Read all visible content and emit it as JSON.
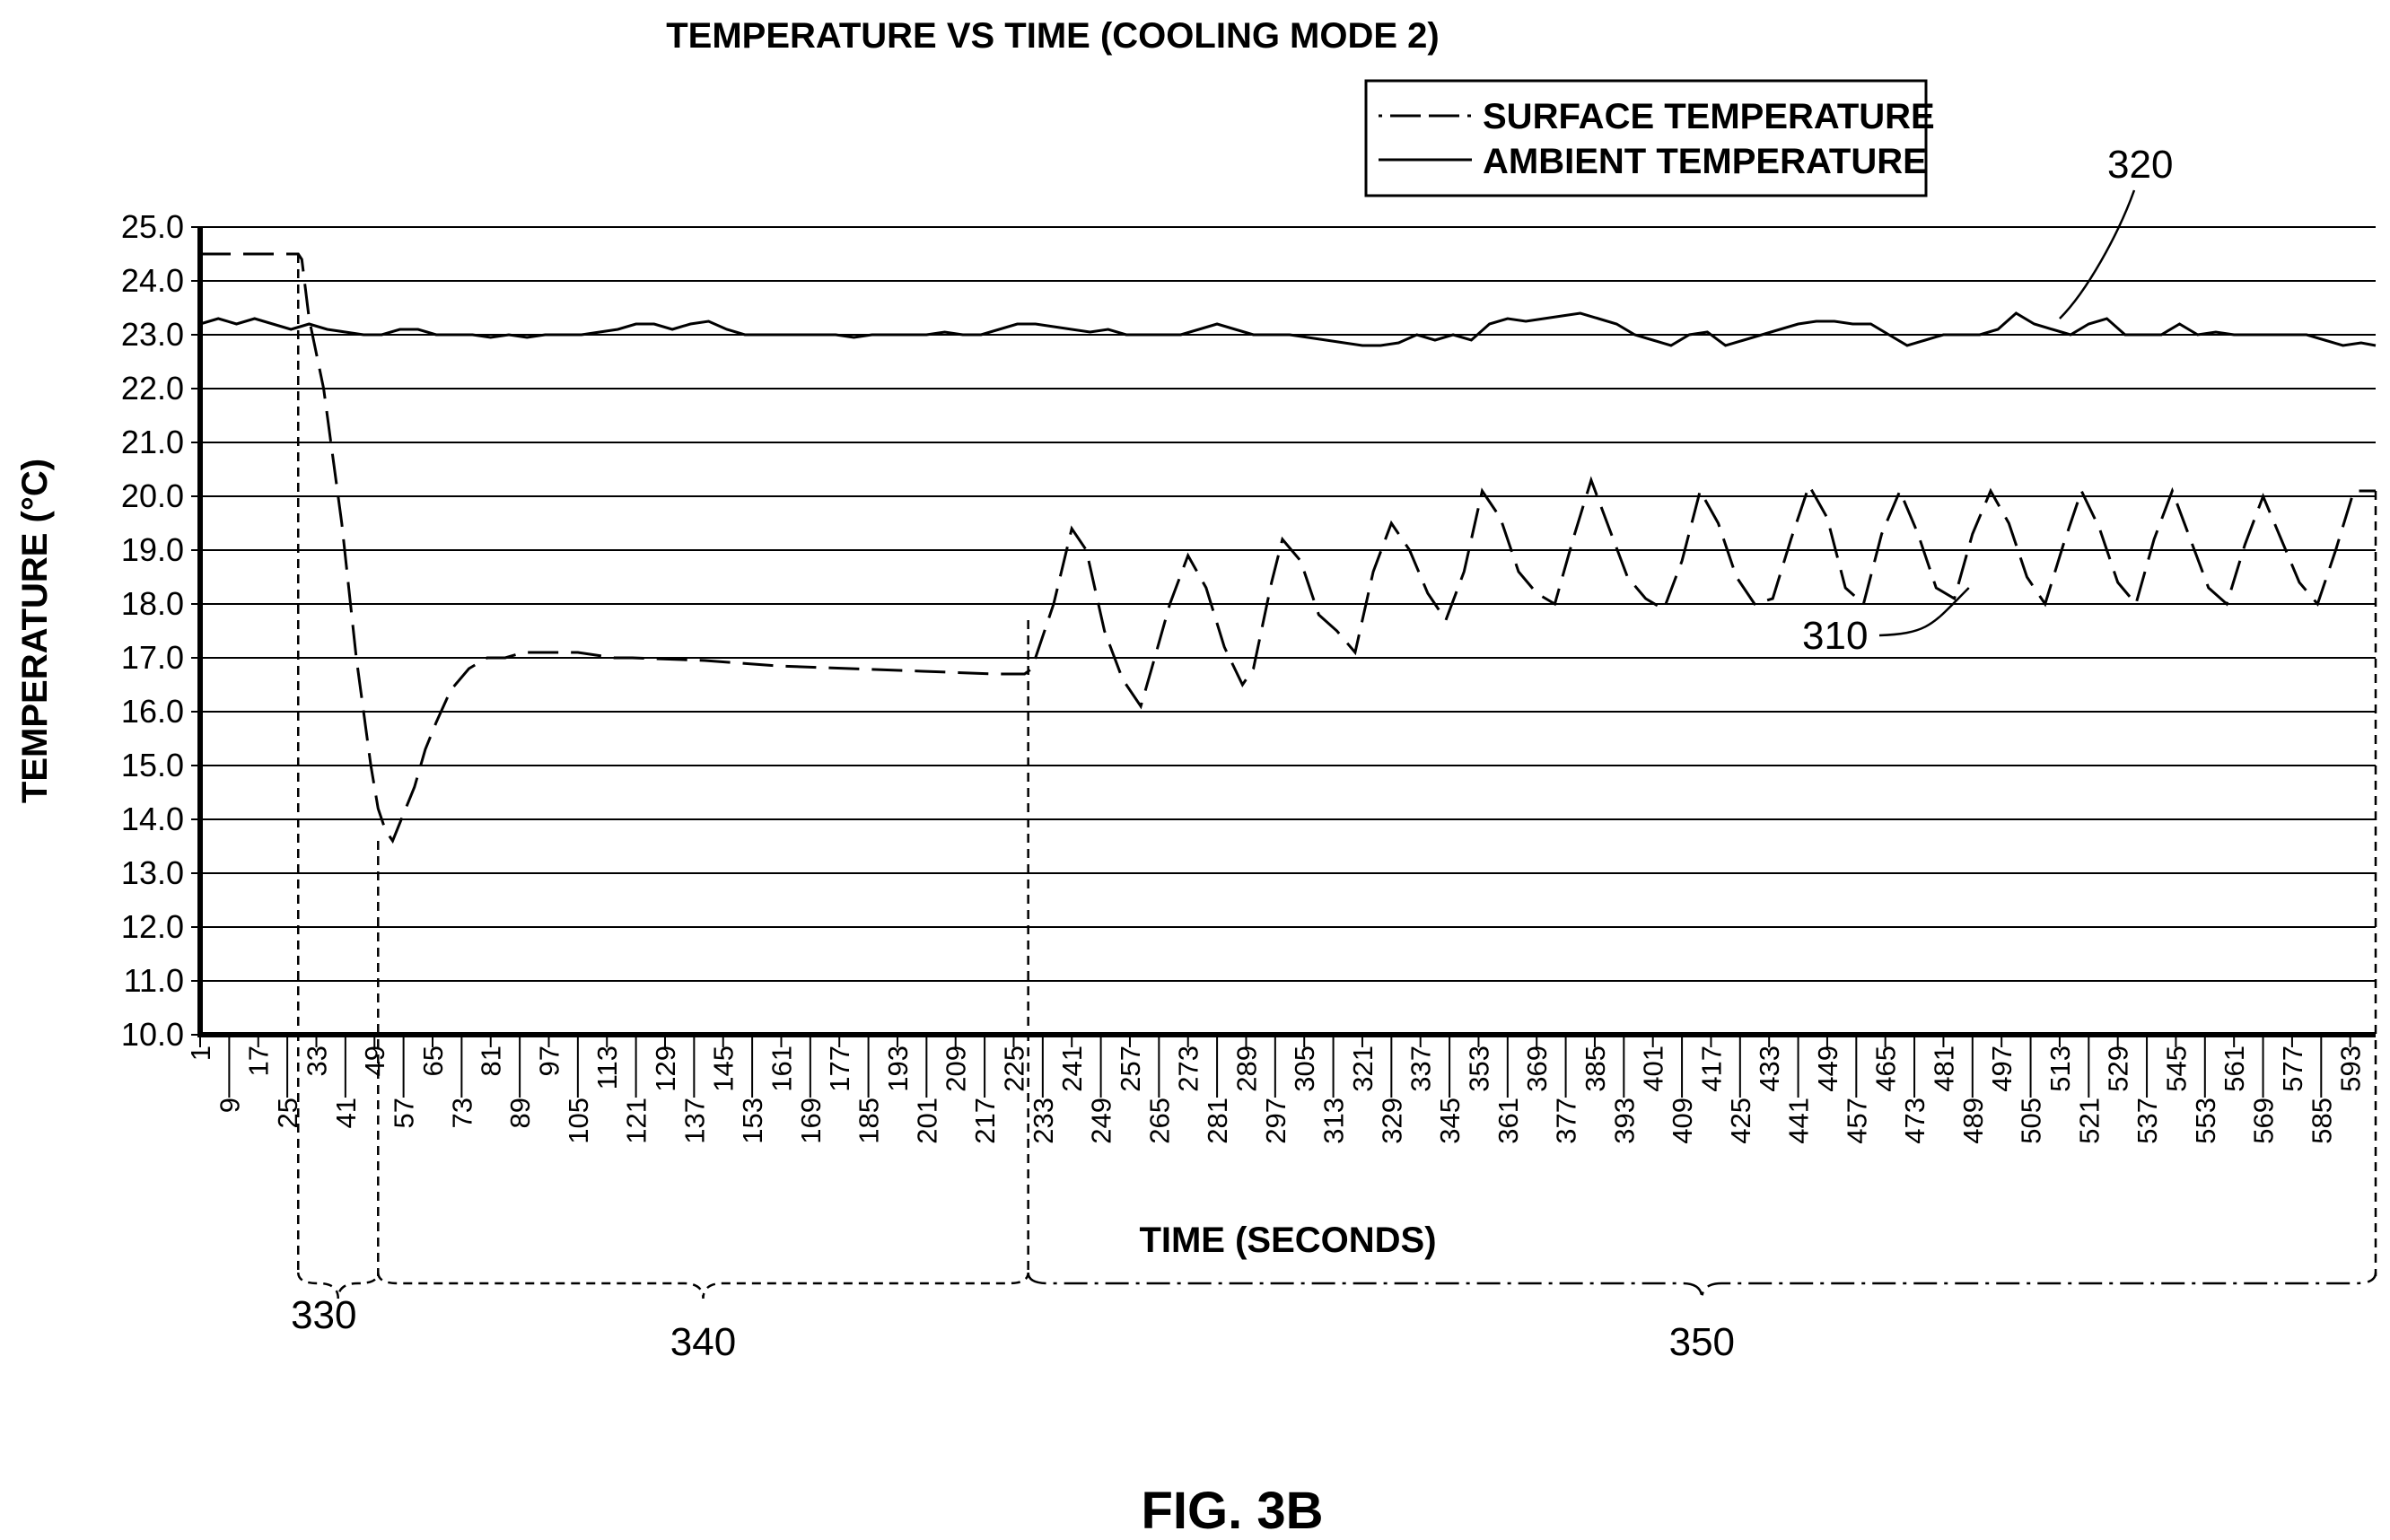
{
  "figure_label": "FIG. 3B",
  "chart_data": {
    "type": "line",
    "title": "TEMPERATURE VS TIME (COOLING MODE 2)",
    "xlabel": "TIME (SECONDS)",
    "ylabel": "TEMPERATURE (°C)",
    "ylim": [
      10.0,
      25.0
    ],
    "xlim": [
      1,
      600
    ],
    "yticks": [
      "10.0",
      "11.0",
      "12.0",
      "13.0",
      "14.0",
      "15.0",
      "16.0",
      "17.0",
      "18.0",
      "19.0",
      "20.0",
      "21.0",
      "22.0",
      "23.0",
      "24.0",
      "25.0"
    ],
    "xticks": [
      "1",
      "9",
      "17",
      "25",
      "33",
      "41",
      "49",
      "57",
      "65",
      "73",
      "81",
      "89",
      "97",
      "105",
      "113",
      "121",
      "129",
      "137",
      "145",
      "153",
      "161",
      "169",
      "177",
      "185",
      "193",
      "201",
      "209",
      "217",
      "225",
      "233",
      "241",
      "249",
      "257",
      "265",
      "273",
      "281",
      "289",
      "297",
      "305",
      "313",
      "321",
      "329",
      "337",
      "345",
      "353",
      "361",
      "369",
      "377",
      "385",
      "393",
      "401",
      "409",
      "417",
      "425",
      "433",
      "441",
      "449",
      "457",
      "465",
      "473",
      "481",
      "489",
      "497",
      "505",
      "513",
      "521",
      "529",
      "537",
      "545",
      "553",
      "561",
      "569",
      "577",
      "585",
      "593"
    ],
    "grid": "horizontal",
    "legend_placement": "top-right",
    "series": [
      {
        "name": "SURFACE TEMPERATURE",
        "style": "dashed",
        "x": [
          1,
          10,
          20,
          28,
          29,
          31,
          35,
          40,
          44,
          48,
          50,
          52,
          54,
          57,
          60,
          63,
          66,
          70,
          75,
          80,
          85,
          90,
          95,
          100,
          105,
          110,
          115,
          120,
          140,
          160,
          180,
          200,
          220,
          228,
          230,
          236,
          241,
          245,
          250,
          255,
          260,
          263,
          268,
          273,
          278,
          283,
          288,
          291,
          296,
          299,
          304,
          309,
          314,
          319,
          324,
          329,
          334,
          339,
          344,
          349,
          354,
          359,
          364,
          369,
          374,
          379,
          384,
          389,
          394,
          399,
          404,
          409,
          414,
          419,
          424,
          429,
          434,
          439,
          444,
          449,
          454,
          459,
          464,
          469,
          474,
          479,
          484,
          489,
          494,
          499,
          504,
          509,
          514,
          519,
          524,
          529,
          534,
          539,
          544,
          549,
          554,
          559,
          564,
          569,
          574,
          579,
          584,
          589,
          594,
          600
        ],
        "y": [
          24.5,
          24.5,
          24.5,
          24.5,
          24.4,
          23.3,
          22.0,
          19.5,
          17.0,
          15.0,
          14.2,
          13.8,
          13.6,
          14.1,
          14.6,
          15.3,
          15.8,
          16.4,
          16.8,
          17.0,
          17.0,
          17.1,
          17.1,
          17.1,
          17.1,
          17.05,
          17.0,
          17.0,
          16.95,
          16.85,
          16.8,
          16.75,
          16.7,
          16.7,
          16.8,
          18.0,
          19.4,
          19.0,
          17.5,
          16.6,
          16.1,
          16.8,
          18.0,
          18.9,
          18.3,
          17.2,
          16.5,
          16.8,
          18.4,
          19.2,
          18.8,
          17.8,
          17.5,
          17.1,
          18.6,
          19.5,
          19.0,
          18.2,
          17.7,
          18.6,
          20.1,
          19.6,
          18.6,
          18.2,
          18.0,
          19.2,
          20.3,
          19.4,
          18.5,
          18.1,
          17.9,
          18.8,
          20.1,
          19.5,
          18.5,
          18.0,
          18.1,
          19.2,
          20.2,
          19.6,
          18.3,
          18.0,
          19.3,
          20.1,
          19.3,
          18.3,
          18.1,
          19.3,
          20.1,
          19.5,
          18.5,
          18.0,
          19.1,
          20.1,
          19.4,
          18.4,
          18.0,
          19.2,
          20.1,
          19.2,
          18.3,
          18.0,
          19.1,
          20.0,
          19.2,
          18.4,
          18.0,
          19.0,
          20.1,
          20.1
        ]
      },
      {
        "name": "AMBIENT TEMPERATURE",
        "style": "solid",
        "x": [
          1,
          6,
          11,
          16,
          21,
          26,
          31,
          36,
          41,
          46,
          51,
          56,
          61,
          66,
          71,
          76,
          81,
          86,
          91,
          96,
          101,
          106,
          111,
          116,
          121,
          126,
          131,
          136,
          141,
          146,
          151,
          156,
          161,
          166,
          171,
          176,
          181,
          186,
          191,
          196,
          201,
          206,
          211,
          216,
          221,
          226,
          231,
          236,
          241,
          246,
          251,
          256,
          261,
          266,
          271,
          276,
          281,
          286,
          291,
          296,
          301,
          306,
          311,
          316,
          321,
          326,
          331,
          336,
          341,
          346,
          351,
          356,
          361,
          366,
          371,
          376,
          381,
          386,
          391,
          396,
          401,
          406,
          411,
          416,
          421,
          426,
          431,
          436,
          441,
          446,
          451,
          456,
          461,
          466,
          471,
          476,
          481,
          486,
          491,
          496,
          501,
          506,
          511,
          516,
          521,
          526,
          531,
          536,
          541,
          546,
          551,
          556,
          561,
          566,
          571,
          576,
          581,
          586,
          591,
          596,
          600
        ],
        "y": [
          23.2,
          23.3,
          23.2,
          23.3,
          23.2,
          23.1,
          23.2,
          23.1,
          23.05,
          23.0,
          23.0,
          23.1,
          23.1,
          23.0,
          23.0,
          23.0,
          22.95,
          23.0,
          22.95,
          23.0,
          23.0,
          23.0,
          23.05,
          23.1,
          23.2,
          23.2,
          23.1,
          23.2,
          23.25,
          23.1,
          23.0,
          23.0,
          23.0,
          23.0,
          23.0,
          23.0,
          22.95,
          23.0,
          23.0,
          23.0,
          23.0,
          23.05,
          23.0,
          23.0,
          23.1,
          23.2,
          23.2,
          23.15,
          23.1,
          23.05,
          23.1,
          23.0,
          23.0,
          23.0,
          23.0,
          23.1,
          23.2,
          23.1,
          23.0,
          23.0,
          23.0,
          22.95,
          22.9,
          22.85,
          22.8,
          22.8,
          22.85,
          23.0,
          22.9,
          23.0,
          22.9,
          23.2,
          23.3,
          23.25,
          23.3,
          23.35,
          23.4,
          23.3,
          23.2,
          23.0,
          22.9,
          22.8,
          23.0,
          23.05,
          22.8,
          22.9,
          23.0,
          23.1,
          23.2,
          23.25,
          23.25,
          23.2,
          23.2,
          23.0,
          22.8,
          22.9,
          23.0,
          23.0,
          23.0,
          23.1,
          23.4,
          23.2,
          23.1,
          23.0,
          23.2,
          23.3,
          23.0,
          23.0,
          23.0,
          23.2,
          23.0,
          23.05,
          23.0,
          23.0,
          23.0,
          23.0,
          23.0,
          22.9,
          22.8,
          22.85,
          22.8
        ]
      }
    ],
    "annotations": [
      {
        "label": "310",
        "target_series": "SURFACE TEMPERATURE",
        "x": 488,
        "y": 18.3
      },
      {
        "label": "320",
        "target_series": "AMBIENT TEMPERATURE",
        "x": 513,
        "y": 23.3
      }
    ],
    "phases": [
      {
        "label": "330",
        "x_start": 28,
        "x_end": 50
      },
      {
        "label": "340",
        "x_start": 50,
        "x_end": 229
      },
      {
        "label": "350",
        "x_start": 229,
        "x_end": 600
      }
    ]
  }
}
